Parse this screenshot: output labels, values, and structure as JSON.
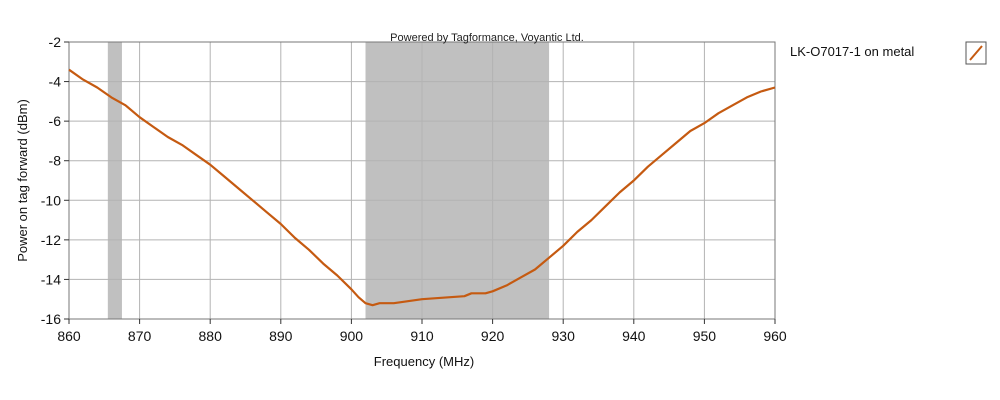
{
  "chart_data": {
    "type": "line",
    "watermark": "Powered by Tagformance, Voyantic Ltd.",
    "xlabel": "Frequency (MHz)",
    "ylabel": "Power on tag forward (dBm)",
    "xlim": [
      860,
      960
    ],
    "ylim": [
      -16,
      -2
    ],
    "x_ticks": [
      860,
      870,
      880,
      890,
      900,
      910,
      920,
      930,
      940,
      950,
      960
    ],
    "y_ticks": [
      -2,
      -4,
      -6,
      -8,
      -10,
      -12,
      -14,
      -16
    ],
    "grid": true,
    "legend_position": "right",
    "shaded_bands": [
      {
        "from": 865.5,
        "to": 867.5
      },
      {
        "from": 902,
        "to": 928
      }
    ],
    "series": [
      {
        "name": "LK-O7017-1 on metal",
        "color": "#c55a11",
        "x": [
          860,
          862,
          864,
          866,
          868,
          870,
          872,
          874,
          876,
          878,
          880,
          882,
          884,
          886,
          888,
          890,
          892,
          894,
          896,
          898,
          900,
          901,
          902,
          903,
          904,
          906,
          908,
          910,
          912,
          914,
          916,
          917,
          918,
          919,
          920,
          922,
          924,
          926,
          928,
          930,
          932,
          934,
          936,
          938,
          940,
          942,
          944,
          946,
          948,
          950,
          952,
          954,
          956,
          958,
          960
        ],
        "y": [
          -3.4,
          -3.9,
          -4.3,
          -4.8,
          -5.2,
          -5.8,
          -6.3,
          -6.8,
          -7.2,
          -7.7,
          -8.2,
          -8.8,
          -9.4,
          -10.0,
          -10.6,
          -11.2,
          -11.9,
          -12.5,
          -13.2,
          -13.8,
          -14.5,
          -14.9,
          -15.2,
          -15.3,
          -15.2,
          -15.2,
          -15.1,
          -15.0,
          -14.95,
          -14.9,
          -14.85,
          -14.7,
          -14.7,
          -14.7,
          -14.6,
          -14.3,
          -13.9,
          -13.5,
          -12.9,
          -12.3,
          -11.6,
          -11.0,
          -10.3,
          -9.6,
          -9.0,
          -8.3,
          -7.7,
          -7.1,
          -6.5,
          -6.1,
          -5.6,
          -5.2,
          -4.8,
          -4.5,
          -4.3
        ]
      }
    ]
  }
}
